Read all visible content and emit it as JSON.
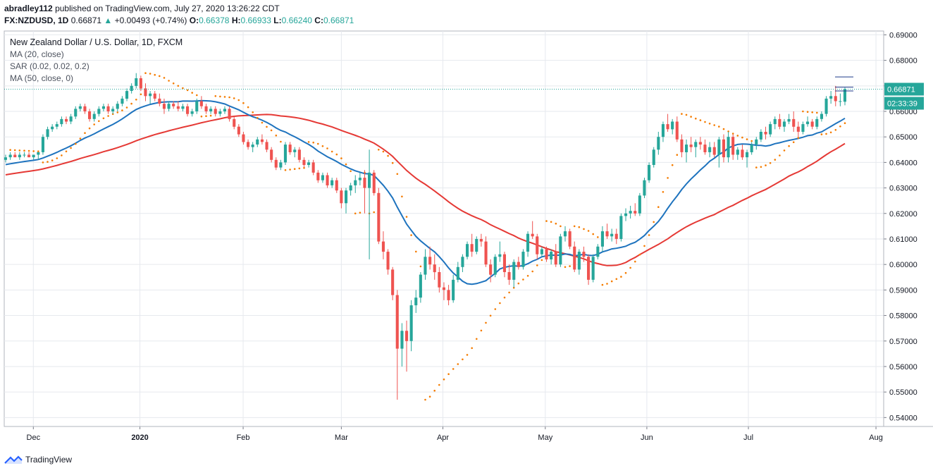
{
  "header": {
    "publisher_user": "abradley112",
    "publisher_text": "published on TradingView.com, July 27, 2020 13:26:22 CDT",
    "symbol": "FX:NZDUSD, 1D",
    "last": "0.66871",
    "change_arrow": "▲",
    "change": "+0.00493 (+0.74%)",
    "o_label": "O:",
    "o": "0.66378",
    "h_label": "H:",
    "h": "0.66933",
    "l_label": "L:",
    "l": "0.66240",
    "c_label": "C:",
    "c": "0.66871"
  },
  "legend": {
    "title": "New Zealand Dollar / U.S. Dollar, 1D, FXCM",
    "ma20": "MA (20, close)",
    "sar": "SAR (0.02, 0.02, 0.2)",
    "ma50": "MA (50, close, 0)"
  },
  "price_badge": "0.66871",
  "countdown_badge": "02:33:39",
  "footer": {
    "brand": "TradingView",
    "logo_icon": "tradingview-logo-icon"
  },
  "colors": {
    "up": "#26a69a",
    "down": "#ef5350",
    "ma20": "#1e73be",
    "ma50": "#e53935",
    "sar": "#f57c00",
    "grid": "#e6e9ee",
    "price_line": "#26a69a"
  },
  "chart_data": {
    "type": "candlestick",
    "x_ticks": [
      "Dec",
      "2020",
      "Feb",
      "Mar",
      "Apr",
      "May",
      "Jun",
      "Jul",
      "Aug"
    ],
    "y_ticks": [
      "0.69000",
      "0.68000",
      "0.67000",
      "0.66000",
      "0.65000",
      "0.64000",
      "0.63000",
      "0.62000",
      "0.61000",
      "0.60000",
      "0.59000",
      "0.58000",
      "0.57000",
      "0.56000",
      "0.55000",
      "0.54000"
    ],
    "ylim": [
      0.5365,
      0.6915
    ],
    "last_price": 0.66871,
    "ohlc": [
      [
        0.641,
        0.643,
        0.64,
        0.642
      ],
      [
        0.642,
        0.644,
        0.641,
        0.643
      ],
      [
        0.643,
        0.644,
        0.642,
        0.642
      ],
      [
        0.642,
        0.644,
        0.641,
        0.643
      ],
      [
        0.643,
        0.644,
        0.642,
        0.643
      ],
      [
        0.643,
        0.644,
        0.642,
        0.642
      ],
      [
        0.642,
        0.643,
        0.641,
        0.643
      ],
      [
        0.643,
        0.644,
        0.641,
        0.644
      ],
      [
        0.644,
        0.651,
        0.643,
        0.65
      ],
      [
        0.65,
        0.654,
        0.649,
        0.653
      ],
      [
        0.653,
        0.655,
        0.652,
        0.654
      ],
      [
        0.654,
        0.656,
        0.653,
        0.655
      ],
      [
        0.655,
        0.658,
        0.654,
        0.657
      ],
      [
        0.657,
        0.658,
        0.655,
        0.656
      ],
      [
        0.656,
        0.659,
        0.655,
        0.658
      ],
      [
        0.658,
        0.662,
        0.657,
        0.661
      ],
      [
        0.661,
        0.663,
        0.66,
        0.662
      ],
      [
        0.662,
        0.663,
        0.659,
        0.66
      ],
      [
        0.66,
        0.661,
        0.656,
        0.657
      ],
      [
        0.657,
        0.66,
        0.656,
        0.659
      ],
      [
        0.659,
        0.662,
        0.658,
        0.661
      ],
      [
        0.661,
        0.663,
        0.66,
        0.662
      ],
      [
        0.662,
        0.663,
        0.659,
        0.66
      ],
      [
        0.66,
        0.662,
        0.659,
        0.661
      ],
      [
        0.661,
        0.664,
        0.66,
        0.663
      ],
      [
        0.663,
        0.666,
        0.662,
        0.665
      ],
      [
        0.665,
        0.669,
        0.664,
        0.668
      ],
      [
        0.668,
        0.671,
        0.667,
        0.67
      ],
      [
        0.67,
        0.675,
        0.669,
        0.673
      ],
      [
        0.673,
        0.674,
        0.668,
        0.669
      ],
      [
        0.669,
        0.671,
        0.664,
        0.666
      ],
      [
        0.666,
        0.668,
        0.663,
        0.667
      ],
      [
        0.667,
        0.668,
        0.664,
        0.665
      ],
      [
        0.665,
        0.667,
        0.662,
        0.663
      ],
      [
        0.663,
        0.665,
        0.659,
        0.661
      ],
      [
        0.661,
        0.664,
        0.66,
        0.663
      ],
      [
        0.663,
        0.664,
        0.661,
        0.662
      ],
      [
        0.662,
        0.664,
        0.66,
        0.661
      ],
      [
        0.661,
        0.663,
        0.66,
        0.662
      ],
      [
        0.662,
        0.663,
        0.658,
        0.659
      ],
      [
        0.659,
        0.661,
        0.658,
        0.66
      ],
      [
        0.66,
        0.665,
        0.659,
        0.664
      ],
      [
        0.664,
        0.666,
        0.661,
        0.662
      ],
      [
        0.662,
        0.663,
        0.659,
        0.66
      ],
      [
        0.66,
        0.662,
        0.659,
        0.661
      ],
      [
        0.661,
        0.662,
        0.658,
        0.659
      ],
      [
        0.659,
        0.661,
        0.658,
        0.66
      ],
      [
        0.66,
        0.662,
        0.659,
        0.661
      ],
      [
        0.661,
        0.662,
        0.656,
        0.657
      ],
      [
        0.657,
        0.658,
        0.653,
        0.654
      ],
      [
        0.654,
        0.655,
        0.65,
        0.651
      ],
      [
        0.651,
        0.652,
        0.647,
        0.648
      ],
      [
        0.648,
        0.649,
        0.645,
        0.646
      ],
      [
        0.646,
        0.648,
        0.644,
        0.647
      ],
      [
        0.647,
        0.65,
        0.646,
        0.649
      ],
      [
        0.649,
        0.651,
        0.647,
        0.648
      ],
      [
        0.648,
        0.649,
        0.644,
        0.645
      ],
      [
        0.645,
        0.646,
        0.64,
        0.641
      ],
      [
        0.641,
        0.642,
        0.637,
        0.638
      ],
      [
        0.638,
        0.641,
        0.637,
        0.64
      ],
      [
        0.64,
        0.648,
        0.639,
        0.647
      ],
      [
        0.647,
        0.648,
        0.643,
        0.644
      ],
      [
        0.644,
        0.646,
        0.642,
        0.645
      ],
      [
        0.645,
        0.646,
        0.64,
        0.641
      ],
      [
        0.641,
        0.642,
        0.638,
        0.639
      ],
      [
        0.639,
        0.641,
        0.638,
        0.64
      ],
      [
        0.64,
        0.641,
        0.635,
        0.636
      ],
      [
        0.636,
        0.637,
        0.632,
        0.633
      ],
      [
        0.633,
        0.636,
        0.632,
        0.635
      ],
      [
        0.635,
        0.636,
        0.63,
        0.631
      ],
      [
        0.631,
        0.634,
        0.63,
        0.633
      ],
      [
        0.633,
        0.634,
        0.628,
        0.629
      ],
      [
        0.629,
        0.63,
        0.622,
        0.624
      ],
      [
        0.624,
        0.63,
        0.62,
        0.629
      ],
      [
        0.629,
        0.632,
        0.627,
        0.631
      ],
      [
        0.631,
        0.635,
        0.628,
        0.633
      ],
      [
        0.633,
        0.636,
        0.631,
        0.634
      ],
      [
        0.634,
        0.637,
        0.62,
        0.63
      ],
      [
        0.63,
        0.645,
        0.602,
        0.636
      ],
      [
        0.636,
        0.637,
        0.627,
        0.628
      ],
      [
        0.628,
        0.63,
        0.608,
        0.609
      ],
      [
        0.609,
        0.613,
        0.602,
        0.605
      ],
      [
        0.605,
        0.606,
        0.596,
        0.598
      ],
      [
        0.598,
        0.599,
        0.586,
        0.588
      ],
      [
        0.588,
        0.59,
        0.547,
        0.567
      ],
      [
        0.567,
        0.577,
        0.56,
        0.574
      ],
      [
        0.574,
        0.578,
        0.558,
        0.57
      ],
      [
        0.57,
        0.586,
        0.566,
        0.584
      ],
      [
        0.584,
        0.59,
        0.581,
        0.587
      ],
      [
        0.587,
        0.597,
        0.585,
        0.596
      ],
      [
        0.596,
        0.606,
        0.594,
        0.603
      ],
      [
        0.603,
        0.607,
        0.598,
        0.6
      ],
      [
        0.6,
        0.604,
        0.594,
        0.597
      ],
      [
        0.597,
        0.599,
        0.589,
        0.591
      ],
      [
        0.591,
        0.593,
        0.586,
        0.59
      ],
      [
        0.59,
        0.592,
        0.584,
        0.586
      ],
      [
        0.586,
        0.596,
        0.585,
        0.594
      ],
      [
        0.594,
        0.601,
        0.593,
        0.599
      ],
      [
        0.599,
        0.604,
        0.597,
        0.603
      ],
      [
        0.603,
        0.609,
        0.602,
        0.608
      ],
      [
        0.608,
        0.612,
        0.603,
        0.605
      ],
      [
        0.605,
        0.611,
        0.604,
        0.61
      ],
      [
        0.61,
        0.612,
        0.607,
        0.609
      ],
      [
        0.609,
        0.611,
        0.599,
        0.6
      ],
      [
        0.6,
        0.602,
        0.593,
        0.596
      ],
      [
        0.596,
        0.604,
        0.595,
        0.603
      ],
      [
        0.603,
        0.609,
        0.601,
        0.604
      ],
      [
        0.604,
        0.605,
        0.595,
        0.597
      ],
      [
        0.597,
        0.6,
        0.592,
        0.594
      ],
      [
        0.594,
        0.602,
        0.591,
        0.601
      ],
      [
        0.601,
        0.603,
        0.598,
        0.599
      ],
      [
        0.599,
        0.606,
        0.598,
        0.605
      ],
      [
        0.605,
        0.613,
        0.603,
        0.612
      ],
      [
        0.612,
        0.617,
        0.61,
        0.611
      ],
      [
        0.611,
        0.612,
        0.602,
        0.604
      ],
      [
        0.604,
        0.607,
        0.603,
        0.606
      ],
      [
        0.606,
        0.607,
        0.601,
        0.602
      ],
      [
        0.602,
        0.606,
        0.6,
        0.605
      ],
      [
        0.605,
        0.608,
        0.599,
        0.6
      ],
      [
        0.6,
        0.612,
        0.599,
        0.611
      ],
      [
        0.611,
        0.615,
        0.609,
        0.613
      ],
      [
        0.613,
        0.614,
        0.606,
        0.607
      ],
      [
        0.607,
        0.609,
        0.597,
        0.598
      ],
      [
        0.598,
        0.606,
        0.596,
        0.605
      ],
      [
        0.605,
        0.607,
        0.601,
        0.603
      ],
      [
        0.603,
        0.604,
        0.592,
        0.594
      ],
      [
        0.594,
        0.604,
        0.593,
        0.603
      ],
      [
        0.603,
        0.608,
        0.602,
        0.607
      ],
      [
        0.607,
        0.615,
        0.605,
        0.613
      ],
      [
        0.613,
        0.616,
        0.61,
        0.611
      ],
      [
        0.611,
        0.614,
        0.609,
        0.612
      ],
      [
        0.612,
        0.614,
        0.608,
        0.61
      ],
      [
        0.61,
        0.62,
        0.609,
        0.619
      ],
      [
        0.619,
        0.622,
        0.617,
        0.62
      ],
      [
        0.62,
        0.623,
        0.618,
        0.621
      ],
      [
        0.621,
        0.624,
        0.619,
        0.62
      ],
      [
        0.62,
        0.628,
        0.619,
        0.627
      ],
      [
        0.627,
        0.634,
        0.626,
        0.633
      ],
      [
        0.633,
        0.64,
        0.632,
        0.639
      ],
      [
        0.639,
        0.646,
        0.638,
        0.645
      ],
      [
        0.645,
        0.652,
        0.643,
        0.65
      ],
      [
        0.65,
        0.656,
        0.648,
        0.655
      ],
      [
        0.655,
        0.659,
        0.652,
        0.653
      ],
      [
        0.653,
        0.657,
        0.651,
        0.656
      ],
      [
        0.656,
        0.658,
        0.648,
        0.649
      ],
      [
        0.649,
        0.651,
        0.642,
        0.644
      ],
      [
        0.644,
        0.649,
        0.64,
        0.647
      ],
      [
        0.647,
        0.65,
        0.644,
        0.646
      ],
      [
        0.646,
        0.649,
        0.642,
        0.648
      ],
      [
        0.648,
        0.65,
        0.645,
        0.647
      ],
      [
        0.647,
        0.649,
        0.643,
        0.644
      ],
      [
        0.644,
        0.648,
        0.642,
        0.646
      ],
      [
        0.646,
        0.648,
        0.642,
        0.643
      ],
      [
        0.643,
        0.65,
        0.638,
        0.649
      ],
      [
        0.649,
        0.651,
        0.64,
        0.642
      ],
      [
        0.642,
        0.652,
        0.64,
        0.65
      ],
      [
        0.65,
        0.651,
        0.641,
        0.643
      ],
      [
        0.643,
        0.646,
        0.641,
        0.645
      ],
      [
        0.645,
        0.647,
        0.641,
        0.642
      ],
      [
        0.642,
        0.645,
        0.638,
        0.644
      ],
      [
        0.644,
        0.648,
        0.643,
        0.647
      ],
      [
        0.647,
        0.65,
        0.645,
        0.649
      ],
      [
        0.649,
        0.653,
        0.648,
        0.652
      ],
      [
        0.652,
        0.654,
        0.649,
        0.651
      ],
      [
        0.651,
        0.656,
        0.65,
        0.655
      ],
      [
        0.655,
        0.658,
        0.653,
        0.657
      ],
      [
        0.657,
        0.659,
        0.653,
        0.654
      ],
      [
        0.654,
        0.657,
        0.652,
        0.656
      ],
      [
        0.656,
        0.659,
        0.655,
        0.657
      ],
      [
        0.657,
        0.66,
        0.652,
        0.654
      ],
      [
        0.654,
        0.656,
        0.65,
        0.652
      ],
      [
        0.652,
        0.656,
        0.651,
        0.655
      ],
      [
        0.655,
        0.658,
        0.654,
        0.656
      ],
      [
        0.656,
        0.657,
        0.653,
        0.654
      ],
      [
        0.654,
        0.658,
        0.653,
        0.657
      ],
      [
        0.657,
        0.66,
        0.656,
        0.659
      ],
      [
        0.659,
        0.666,
        0.658,
        0.665
      ],
      [
        0.665,
        0.668,
        0.663,
        0.666
      ],
      [
        0.666,
        0.67,
        0.662,
        0.664
      ],
      [
        0.664,
        0.667,
        0.662,
        0.664
      ],
      [
        0.66378,
        0.66933,
        0.6624,
        0.66871
      ]
    ]
  }
}
